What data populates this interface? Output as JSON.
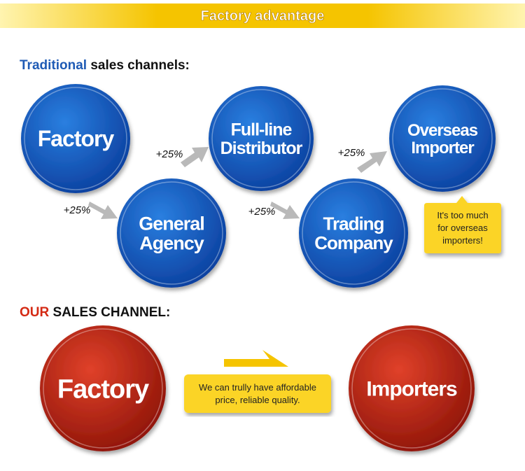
{
  "header": {
    "title": "Factory advantage"
  },
  "traditional": {
    "heading_highlight": "Traditional",
    "heading_rest": "sales channels:",
    "nodes": [
      {
        "lines": [
          "Factory"
        ]
      },
      {
        "lines": [
          "General",
          "Agency"
        ]
      },
      {
        "lines": [
          "Full-line",
          "Distributor"
        ]
      },
      {
        "lines": [
          "Trading",
          "Company"
        ]
      },
      {
        "lines": [
          "Overseas",
          "Importer"
        ]
      }
    ],
    "markups": [
      "+25%",
      "+25%",
      "+25%",
      "+25%"
    ],
    "note": {
      "lines": [
        "It's too much",
        "for overseas",
        "importers!"
      ]
    }
  },
  "ours": {
    "heading_highlight": "OUR",
    "heading_rest": "SALES CHANNEL:",
    "nodes": [
      {
        "lines": [
          "Factory"
        ]
      },
      {
        "lines": [
          "Importers"
        ]
      }
    ],
    "note": {
      "lines": [
        "We can trully have affordable",
        "price,  reliable quality."
      ]
    }
  }
}
